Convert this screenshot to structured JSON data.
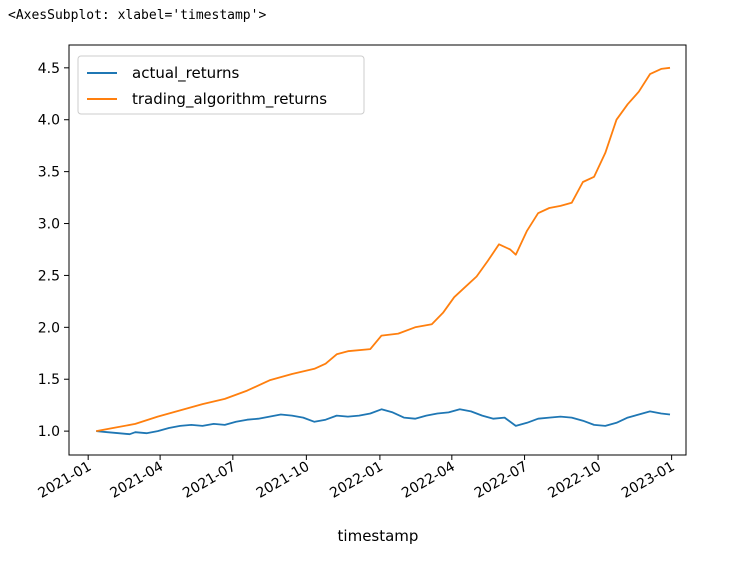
{
  "output_repr": "<AxesSubplot: xlabel='timestamp'>",
  "chart_data": {
    "type": "line",
    "title": "",
    "xlabel": "timestamp",
    "ylabel": "",
    "xlim": [
      "2020-12-08",
      "2023-01-19"
    ],
    "ylim": [
      0.77,
      4.72
    ],
    "grid": false,
    "legend_position": "top-left",
    "x_ticks": [
      "2021-01",
      "2021-04",
      "2021-07",
      "2021-10",
      "2022-01",
      "2022-04",
      "2022-07",
      "2022-10",
      "2023-01"
    ],
    "y_ticks": [
      "1.0",
      "1.5",
      "2.0",
      "2.5",
      "3.0",
      "3.5",
      "4.0",
      "4.5"
    ],
    "series": [
      {
        "name": "actual_returns",
        "color": "#1f77b4",
        "points": [
          [
            "2021-01-11",
            1.0
          ],
          [
            "2021-01-25",
            0.99
          ],
          [
            "2021-02-08",
            0.98
          ],
          [
            "2021-02-22",
            0.97
          ],
          [
            "2021-03-01",
            0.99
          ],
          [
            "2021-03-15",
            0.98
          ],
          [
            "2021-03-29",
            1.0
          ],
          [
            "2021-04-12",
            1.03
          ],
          [
            "2021-04-26",
            1.05
          ],
          [
            "2021-05-10",
            1.06
          ],
          [
            "2021-05-24",
            1.05
          ],
          [
            "2021-06-07",
            1.07
          ],
          [
            "2021-06-21",
            1.06
          ],
          [
            "2021-07-05",
            1.09
          ],
          [
            "2021-07-19",
            1.11
          ],
          [
            "2021-08-02",
            1.12
          ],
          [
            "2021-08-16",
            1.14
          ],
          [
            "2021-08-30",
            1.16
          ],
          [
            "2021-09-13",
            1.15
          ],
          [
            "2021-09-27",
            1.13
          ],
          [
            "2021-10-11",
            1.09
          ],
          [
            "2021-10-25",
            1.11
          ],
          [
            "2021-11-08",
            1.15
          ],
          [
            "2021-11-22",
            1.14
          ],
          [
            "2021-12-06",
            1.15
          ],
          [
            "2021-12-20",
            1.17
          ],
          [
            "2022-01-03",
            1.21
          ],
          [
            "2022-01-17",
            1.18
          ],
          [
            "2022-01-31",
            1.13
          ],
          [
            "2022-02-14",
            1.12
          ],
          [
            "2022-02-28",
            1.15
          ],
          [
            "2022-03-14",
            1.17
          ],
          [
            "2022-03-28",
            1.18
          ],
          [
            "2022-04-11",
            1.21
          ],
          [
            "2022-04-25",
            1.19
          ],
          [
            "2022-05-09",
            1.15
          ],
          [
            "2022-05-23",
            1.12
          ],
          [
            "2022-06-06",
            1.13
          ],
          [
            "2022-06-20",
            1.05
          ],
          [
            "2022-07-04",
            1.08
          ],
          [
            "2022-07-18",
            1.12
          ],
          [
            "2022-08-01",
            1.13
          ],
          [
            "2022-08-15",
            1.14
          ],
          [
            "2022-08-29",
            1.13
          ],
          [
            "2022-09-12",
            1.1
          ],
          [
            "2022-09-26",
            1.06
          ],
          [
            "2022-10-10",
            1.05
          ],
          [
            "2022-10-24",
            1.08
          ],
          [
            "2022-11-07",
            1.13
          ],
          [
            "2022-11-21",
            1.16
          ],
          [
            "2022-12-05",
            1.19
          ],
          [
            "2022-12-19",
            1.17
          ],
          [
            "2022-12-30",
            1.16
          ]
        ]
      },
      {
        "name": "trading_algorithm_returns",
        "color": "#ff7f0e",
        "points": [
          [
            "2021-01-11",
            1.0
          ],
          [
            "2021-02-01",
            1.03
          ],
          [
            "2021-03-01",
            1.07
          ],
          [
            "2021-03-29",
            1.14
          ],
          [
            "2021-04-26",
            1.2
          ],
          [
            "2021-05-24",
            1.26
          ],
          [
            "2021-06-21",
            1.31
          ],
          [
            "2021-07-19",
            1.39
          ],
          [
            "2021-08-16",
            1.49
          ],
          [
            "2021-09-13",
            1.55
          ],
          [
            "2021-10-11",
            1.6
          ],
          [
            "2021-10-25",
            1.65
          ],
          [
            "2021-11-08",
            1.74
          ],
          [
            "2021-11-22",
            1.77
          ],
          [
            "2021-12-20",
            1.79
          ],
          [
            "2022-01-03",
            1.92
          ],
          [
            "2022-01-24",
            1.94
          ],
          [
            "2022-02-14",
            2.0
          ],
          [
            "2022-03-07",
            2.03
          ],
          [
            "2022-03-21",
            2.14
          ],
          [
            "2022-04-04",
            2.29
          ],
          [
            "2022-04-18",
            2.39
          ],
          [
            "2022-05-02",
            2.49
          ],
          [
            "2022-05-16",
            2.64
          ],
          [
            "2022-05-30",
            2.8
          ],
          [
            "2022-06-13",
            2.75
          ],
          [
            "2022-06-20",
            2.7
          ],
          [
            "2022-07-04",
            2.93
          ],
          [
            "2022-07-18",
            3.1
          ],
          [
            "2022-08-01",
            3.15
          ],
          [
            "2022-08-15",
            3.17
          ],
          [
            "2022-08-29",
            3.2
          ],
          [
            "2022-09-12",
            3.4
          ],
          [
            "2022-09-26",
            3.45
          ],
          [
            "2022-10-10",
            3.68
          ],
          [
            "2022-10-24",
            4.0
          ],
          [
            "2022-11-07",
            4.15
          ],
          [
            "2022-11-21",
            4.27
          ],
          [
            "2022-12-05",
            4.44
          ],
          [
            "2022-12-19",
            4.49
          ],
          [
            "2022-12-30",
            4.5
          ]
        ]
      }
    ]
  }
}
